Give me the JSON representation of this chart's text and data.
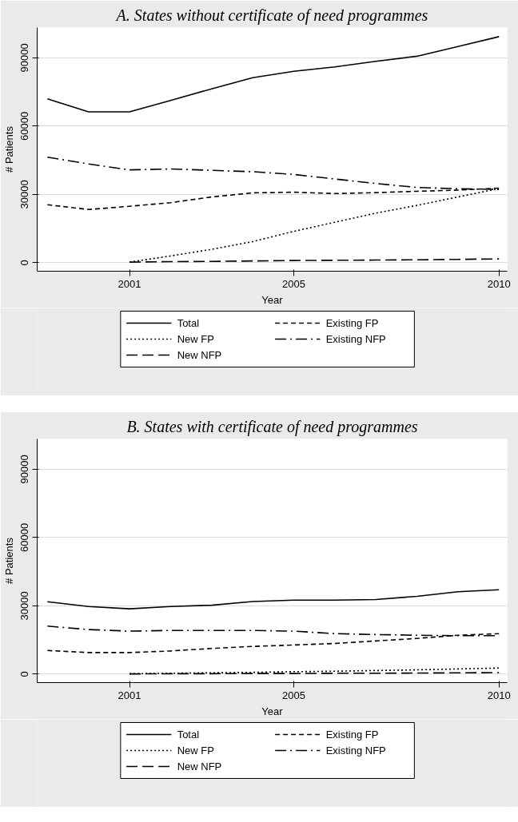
{
  "chart_data": [
    {
      "type": "line",
      "title": "A. States without certificate of need programmes",
      "xlabel": "Year",
      "ylabel": "# Patients",
      "x": [
        1999,
        2000,
        2001,
        2002,
        2003,
        2004,
        2005,
        2006,
        2007,
        2008,
        2009,
        2010
      ],
      "xlim": [
        1998.75,
        2010.2
      ],
      "xticks": [
        2001,
        2005,
        2010
      ],
      "ylim": [
        -3700,
        103300
      ],
      "yticks": [
        0,
        30000,
        60000,
        90000
      ],
      "grid": "y",
      "legend": "bottom",
      "series": [
        {
          "name": "Total",
          "color": "#000000",
          "line_style": "solid",
          "values": [
            72000,
            66300,
            66300,
            71300,
            76400,
            81300,
            84100,
            86000,
            88500,
            90700,
            95000,
            99300
          ]
        },
        {
          "name": "Existing FP",
          "color": "#000000",
          "line_style": "dashed",
          "values": [
            25500,
            23400,
            24800,
            26400,
            28900,
            30700,
            31000,
            30400,
            30800,
            31400,
            31900,
            32800
          ]
        },
        {
          "name": "New FP",
          "color": "#000000",
          "line_style": "dotted",
          "x": [
            2001,
            2002,
            2003,
            2004,
            2005,
            2006,
            2007,
            2008,
            2009,
            2010
          ],
          "values": [
            300,
            3000,
            5900,
            9300,
            13800,
            17800,
            21800,
            25200,
            28900,
            32600
          ]
        },
        {
          "name": "Existing NFP",
          "color": "#000000",
          "line_style": "dashdot",
          "values": [
            46400,
            43400,
            40800,
            41200,
            40600,
            40000,
            38800,
            36800,
            34800,
            33100,
            32500,
            32200
          ]
        },
        {
          "name": "New NFP",
          "color": "#000000",
          "line_style": "longdash",
          "x": [
            2001,
            2002,
            2003,
            2004,
            2005,
            2006,
            2007,
            2008,
            2009,
            2010
          ],
          "values": [
            300,
            500,
            600,
            800,
            1000,
            1100,
            1200,
            1300,
            1500,
            1700
          ]
        }
      ]
    },
    {
      "type": "line",
      "title": "B. States with certificate of need programmes",
      "xlabel": "Year",
      "ylabel": "# Patients",
      "x": [
        1999,
        2000,
        2001,
        2002,
        2003,
        2004,
        2005,
        2006,
        2007,
        2008,
        2009,
        2010
      ],
      "xlim": [
        1998.75,
        2010.2
      ],
      "xticks": [
        2001,
        2005,
        2010
      ],
      "ylim": [
        -3700,
        103300
      ],
      "yticks": [
        0,
        30000,
        60000,
        90000
      ],
      "grid": "y",
      "legend": "bottom",
      "series": [
        {
          "name": "Total",
          "color": "#000000",
          "line_style": "solid",
          "values": [
            31800,
            29700,
            28700,
            29700,
            30300,
            31900,
            32500,
            32500,
            32800,
            34200,
            36200,
            37100
          ]
        },
        {
          "name": "Existing FP",
          "color": "#000000",
          "line_style": "dashed",
          "values": [
            10400,
            9500,
            9500,
            10200,
            11300,
            12200,
            12800,
            13500,
            14600,
            15700,
            17100,
            17800
          ]
        },
        {
          "name": "New FP",
          "color": "#000000",
          "line_style": "dotted",
          "x": [
            2001,
            2002,
            2003,
            2004,
            2005,
            2006,
            2007,
            2008,
            2009,
            2010
          ],
          "values": [
            200,
            400,
            600,
            800,
            1100,
            1300,
            1600,
            1900,
            2300,
            2700
          ]
        },
        {
          "name": "Existing NFP",
          "color": "#000000",
          "line_style": "dashdot",
          "values": [
            21100,
            19600,
            18900,
            19200,
            19200,
            19200,
            18900,
            17800,
            17400,
            17100,
            16900,
            16900
          ]
        },
        {
          "name": "New NFP",
          "color": "#000000",
          "line_style": "longdash",
          "x": [
            2001,
            2002,
            2003,
            2004,
            2005,
            2006,
            2007,
            2008,
            2009,
            2010
          ],
          "values": [
            100,
            200,
            200,
            300,
            300,
            400,
            400,
            500,
            600,
            700
          ]
        }
      ]
    }
  ]
}
